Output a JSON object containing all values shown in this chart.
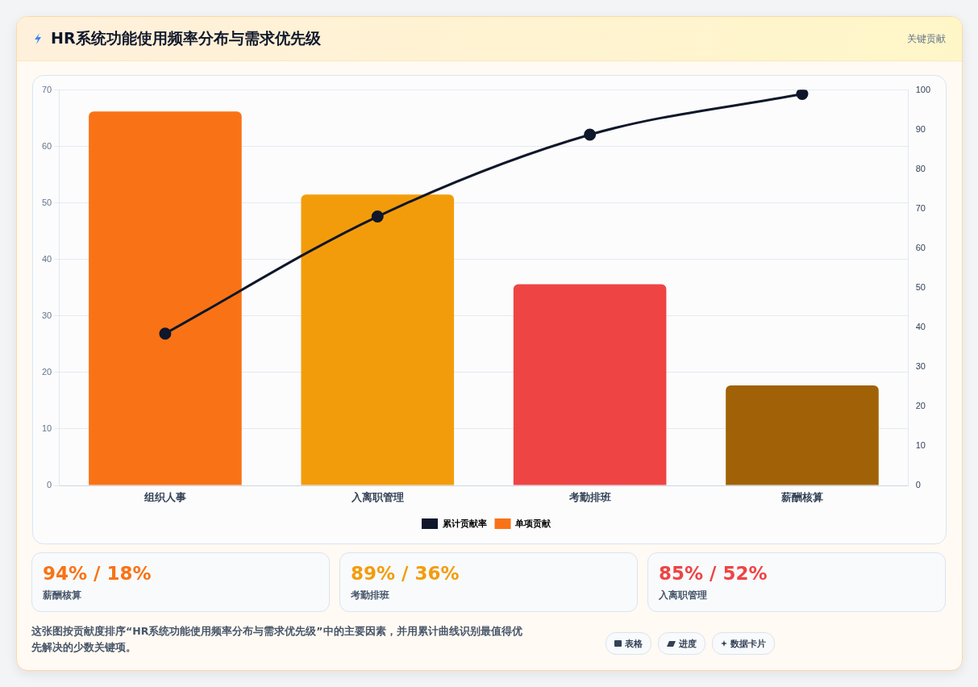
{
  "chart_data": {
    "type": "bar",
    "title": "HR系统功能使用频率分布与需求优先级",
    "categories": [
      "组织人事",
      "入离职管理",
      "考勤排班",
      "薪酬核算"
    ],
    "series": [
      {
        "name": "累计贡献率",
        "type": "line",
        "axis": "y2",
        "color": "#0f172a",
        "values": [
          38.4,
          68,
          88.7,
          99
        ]
      },
      {
        "name": "单项贡献",
        "type": "bar",
        "color": "#f97316",
        "colors": [
          "#f97316",
          "#f39c0b",
          "#ef4444",
          "#a16207"
        ],
        "values": [
          66.2,
          51.5,
          35.6,
          17.7
        ]
      }
    ],
    "ylim": [
      0,
      70
    ],
    "yticks": [
      0,
      10,
      20,
      30,
      40,
      50,
      60,
      70
    ],
    "y2lim": [
      0,
      100
    ],
    "y2ticks": [
      0,
      10,
      20,
      30,
      40,
      50,
      60,
      70,
      80,
      90,
      100
    ],
    "grid": "y",
    "legend": "bottom",
    "marker": "circle",
    "annotations": [
      "关键贡献",
      "94% / 18%",
      "薪酬核算",
      "89% / 36%",
      "考勤排班",
      "85% / 52%",
      "入离职管理",
      "这张图按贡献度排序“HR系统功能使用频率分布与需求优先级”中的主要因素，并用累计曲线识别最值得优先解决的少数关键项。",
      "表格",
      "进度",
      "数据卡片"
    ]
  }
}
